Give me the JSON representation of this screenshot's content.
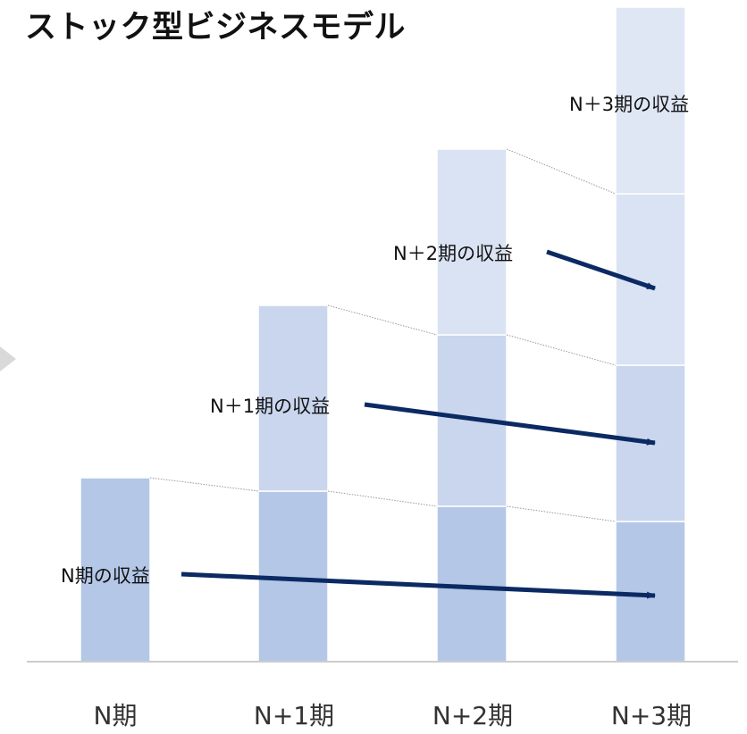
{
  "title": "ストック型ビジネスモデル",
  "categories": [
    "N期",
    "N+1期",
    "N+2期",
    "N+3期"
  ],
  "layers": [
    {
      "label": "N期の収益",
      "color": "#b4c7e7"
    },
    {
      "label": "N＋1期の収益",
      "color": "#c9d6ee"
    },
    {
      "label": "N＋2期の収益",
      "color": "#dae3f3"
    },
    {
      "label": "N＋3期の収益",
      "color": "#dfe6f4"
    }
  ],
  "colors": {
    "arrow": "#0b2a63",
    "baseline": "#cccccc",
    "connector": "#999999"
  }
}
